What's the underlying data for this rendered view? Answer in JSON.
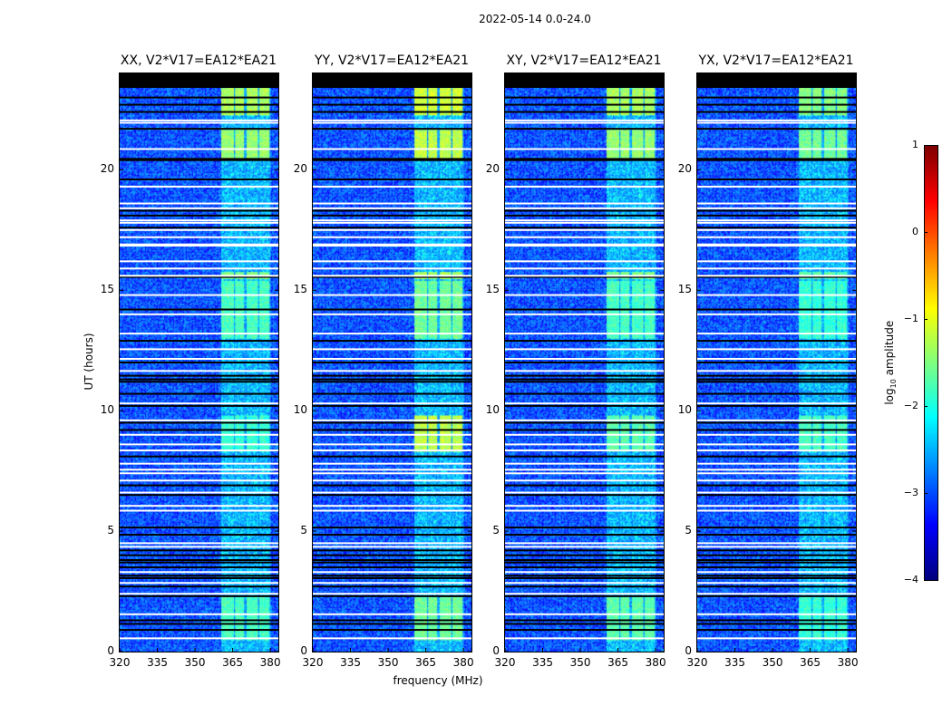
{
  "chart_data": {
    "type": "heatmap",
    "suptitle": "2022-05-14 0.0-24.0",
    "xlabel": "frequency (MHz)",
    "ylabel": "UT (hours)",
    "xlim": [
      320,
      383.2
    ],
    "ylim": [
      0,
      24
    ],
    "xticks": [
      "320",
      "335",
      "350",
      "365",
      "380"
    ],
    "xtick_values": [
      320,
      335,
      350,
      365,
      380
    ],
    "yticks": [
      "0",
      "5",
      "10",
      "15",
      "20"
    ],
    "ytick_values": [
      0,
      5,
      10,
      15,
      20
    ],
    "colorbar": {
      "label_prefix": "log",
      "label_sub": "10",
      "label_suffix": " amplitude",
      "colormap": "jet",
      "range": [
        -4,
        1
      ],
      "ticks": [
        "1",
        "0",
        "−1",
        "−2",
        "−3",
        "−4"
      ],
      "tick_values": [
        1,
        0,
        -1,
        -2,
        -3,
        -4
      ]
    },
    "background_log_amplitude": -3.0,
    "no_data_ut": [
      23.4,
      24
    ],
    "rfi_channels_mhz": [
      [
        360,
        365
      ],
      [
        365.7,
        369.5
      ],
      [
        370.5,
        374.8
      ],
      [
        375.5,
        379.5
      ]
    ],
    "flagged_blank_ut": [
      22.05,
      21.95,
      20.86,
      19.3,
      18.6,
      18.4,
      17.9,
      17.8,
      17.5,
      17.2,
      16.9,
      16.85,
      16.2,
      15.9,
      15.6,
      14.8,
      14.0,
      13.2,
      12.55,
      12.15,
      11.65,
      10.3,
      9.6,
      9.0,
      8.6,
      8.35,
      7.8,
      7.55,
      7.4,
      7.1,
      6.6,
      6.05,
      5.85,
      4.5,
      4.35,
      3.3,
      2.85,
      2.4,
      1.55,
      0.55
    ],
    "flagged_zero_ut": [
      23.0,
      22.7,
      22.4,
      21.7,
      20.45,
      20.4,
      19.6,
      18.3,
      18.1,
      17.6,
      15.55,
      14.2,
      12.9,
      12.0,
      11.45,
      11.3,
      11.2,
      10.7,
      10.2,
      9.5,
      9.2,
      8.1,
      6.9,
      6.5,
      5.15,
      4.85,
      4.2,
      4.0,
      3.8,
      3.7,
      3.5,
      3.15,
      3.05,
      2.7,
      2.3,
      1.3,
      1.15,
      0.9
    ],
    "panels": [
      {
        "title": "XX, V2*V17=EA12*EA21",
        "rfi_segments": [
          [
            22.3,
            23.4,
            -1.3
          ],
          [
            20.5,
            21.7,
            -1.4
          ],
          [
            15.5,
            15.8,
            -1.5
          ],
          [
            13.0,
            15.4,
            -1.8
          ],
          [
            8.3,
            9.8,
            -1.9
          ],
          [
            0.5,
            2.3,
            -1.8
          ]
        ]
      },
      {
        "title": "YY, V2*V17=EA12*EA21",
        "rfi_segments": [
          [
            22.3,
            23.4,
            -1.1
          ],
          [
            20.5,
            21.7,
            -1.2
          ],
          [
            15.5,
            15.8,
            -1.3
          ],
          [
            13.0,
            15.4,
            -1.6
          ],
          [
            8.3,
            9.8,
            -1.2
          ],
          [
            0.5,
            2.3,
            -1.6
          ]
        ]
      },
      {
        "title": "XY, V2*V17=EA12*EA21",
        "rfi_segments": [
          [
            22.3,
            23.4,
            -1.3
          ],
          [
            20.5,
            21.7,
            -1.4
          ],
          [
            15.5,
            15.8,
            -1.5
          ],
          [
            13.0,
            15.4,
            -1.8
          ],
          [
            8.3,
            9.8,
            -1.7
          ],
          [
            0.5,
            2.3,
            -1.7
          ]
        ]
      },
      {
        "title": "YX, V2*V17=EA12*EA21",
        "rfi_segments": [
          [
            22.3,
            23.4,
            -1.5
          ],
          [
            20.5,
            21.7,
            -1.6
          ],
          [
            15.5,
            15.8,
            -1.7
          ],
          [
            13.0,
            15.4,
            -1.9
          ],
          [
            8.3,
            9.8,
            -1.8
          ],
          [
            0.5,
            2.3,
            -1.9
          ]
        ]
      }
    ]
  }
}
